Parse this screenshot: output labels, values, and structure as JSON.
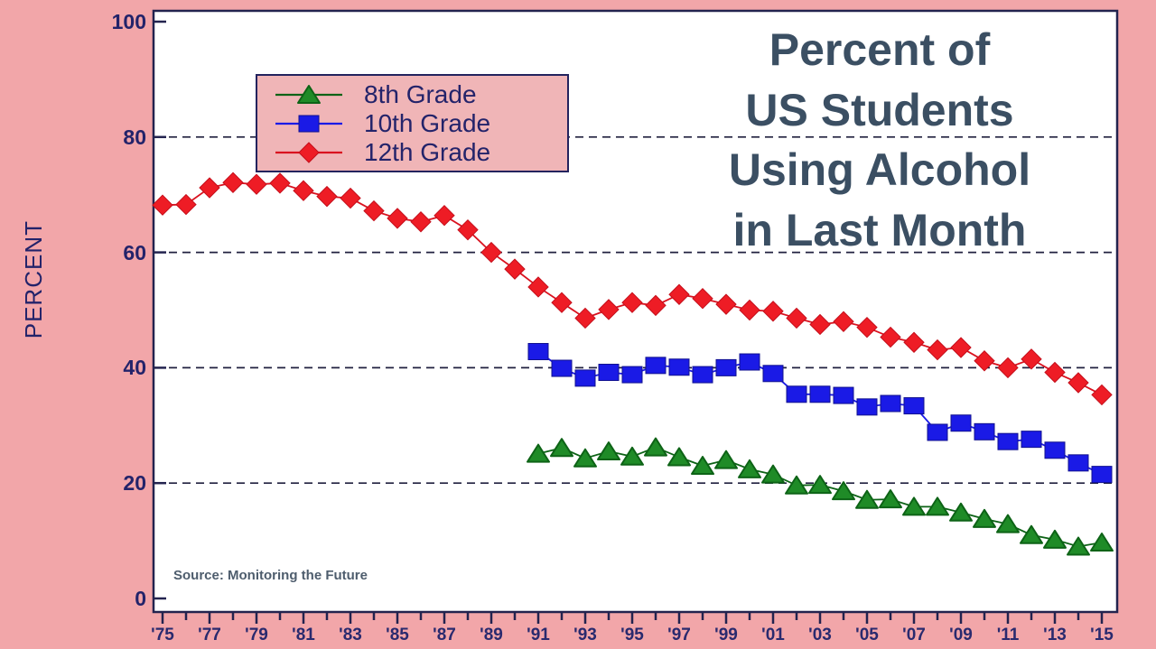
{
  "title": {
    "lines": [
      "Percent of",
      "US Students",
      "Using Alcohol",
      "in Last Month"
    ]
  },
  "source": "Source: Monitoring the Future",
  "y_axis": {
    "label": "PERCENT",
    "ticks": [
      "100",
      "80",
      "60",
      "40",
      "20",
      "0"
    ]
  },
  "x_axis": {
    "labels": [
      "'75",
      "'77",
      "'79",
      "'81",
      "'83",
      "'85",
      "'87",
      "'89",
      "'91",
      "'93",
      "'95",
      "'97",
      "'99",
      "'01",
      "'03",
      "'05",
      "'07",
      "'09",
      "'11",
      "'13",
      "'15"
    ],
    "label_years": [
      1975,
      1977,
      1979,
      1981,
      1983,
      1985,
      1987,
      1989,
      1991,
      1993,
      1995,
      1997,
      1999,
      2001,
      2003,
      2005,
      2007,
      2009,
      2011,
      2013,
      2015
    ]
  },
  "legend": {
    "items": [
      {
        "label": "8th Grade",
        "marker": "triangle",
        "color": "#1f8b27",
        "line_color": "#0d6316"
      },
      {
        "label": "10th Grade",
        "marker": "square",
        "color": "#1a1ae6",
        "line_color": "#1a1ae6"
      },
      {
        "label": "12th Grade",
        "marker": "diamond",
        "color": "#ee1c25",
        "line_color": "#d9121f"
      }
    ]
  },
  "colors": {
    "background": "#f2a6a9",
    "plot_background": "#ffffff",
    "plot_border": "#23234f",
    "gridline": "#20203f",
    "axis_text": "#23236a",
    "title_text": "#3b4f63",
    "legend_background": "#f0b5b7",
    "green": "#1f8b27",
    "blue": "#1a1ae6",
    "red": "#ee1c25"
  },
  "chart_data": {
    "type": "line",
    "title": "Percent of US Students Using Alcohol in Last Month",
    "xlabel": "",
    "ylabel": "PERCENT",
    "ylim": [
      0,
      100
    ],
    "xlim": [
      1975,
      2015
    ],
    "y_gridlines": [
      20,
      40,
      60,
      80
    ],
    "grid_style": "dashed",
    "legend_position": "inside-upper-left",
    "x_unit": "year",
    "series": [
      {
        "name": "8th Grade",
        "marker": "triangle",
        "color": "#1f8b27",
        "start_year": 1991,
        "values": [
          25.1,
          26.1,
          24.3,
          25.5,
          24.6,
          26.2,
          24.5,
          23.0,
          24.0,
          22.4,
          21.5,
          19.6,
          19.7,
          18.6,
          17.1,
          17.2,
          15.9,
          15.9,
          14.9,
          13.8,
          12.9,
          11.0,
          10.2,
          9.0,
          9.7
        ]
      },
      {
        "name": "10th Grade",
        "marker": "square",
        "color": "#1a1ae6",
        "start_year": 1991,
        "values": [
          42.8,
          39.9,
          38.2,
          39.2,
          38.8,
          40.4,
          40.1,
          38.8,
          40.0,
          41.0,
          39.0,
          35.4,
          35.4,
          35.2,
          33.2,
          33.8,
          33.4,
          28.8,
          30.4,
          28.9,
          27.2,
          27.6,
          25.7,
          23.5,
          21.5
        ]
      },
      {
        "name": "12th Grade",
        "marker": "diamond",
        "color": "#ee1c25",
        "start_year": 1975,
        "values": [
          68.2,
          68.3,
          71.2,
          72.1,
          71.8,
          72.0,
          70.7,
          69.7,
          69.4,
          67.2,
          65.9,
          65.3,
          66.4,
          63.9,
          60.0,
          57.1,
          54.0,
          51.3,
          48.6,
          50.1,
          51.3,
          50.8,
          52.7,
          52.0,
          51.0,
          50.0,
          49.8,
          48.6,
          47.5,
          48.0,
          47.0,
          45.3,
          44.4,
          43.1,
          43.5,
          41.2,
          40.0,
          41.5,
          39.2,
          37.4,
          35.3
        ]
      }
    ]
  }
}
